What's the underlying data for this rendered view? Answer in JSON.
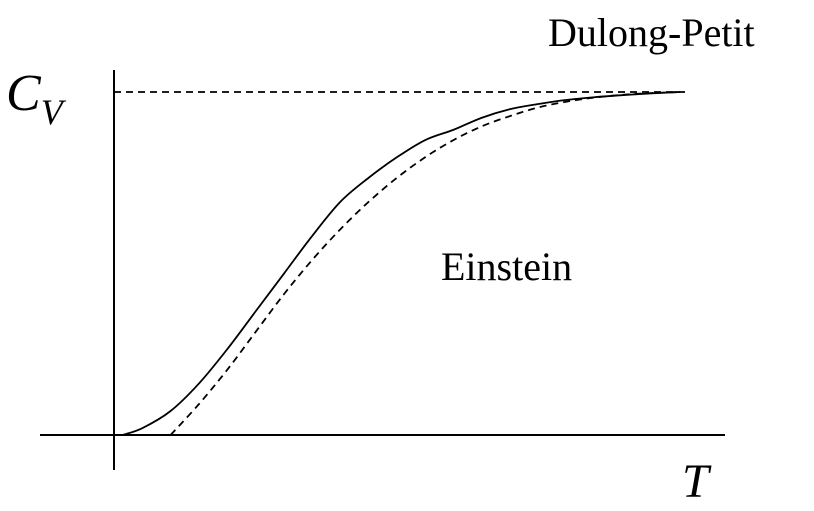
{
  "chart_data": {
    "type": "line",
    "xlabel": "T",
    "ylabel": {
      "main": "C",
      "sub": "V"
    },
    "annotations": {
      "asymptote_label": "Dulong-Petit",
      "curve_label": "Einstein"
    },
    "xlim": [
      0,
      10
    ],
    "ylim": [
      0,
      1
    ],
    "asymptote_y": 1,
    "grid": false,
    "series": [
      {
        "style": "solid",
        "x": [
          0.15,
          0.5,
          1,
          1.5,
          2,
          2.5,
          3,
          3.5,
          4,
          4.5,
          5,
          5.5,
          6,
          6.5,
          7,
          7.5,
          8,
          8.5,
          9,
          9.5,
          10
        ],
        "y": [
          0.0,
          0.02,
          0.07,
          0.15,
          0.25,
          0.36,
          0.47,
          0.58,
          0.68,
          0.75,
          0.81,
          0.86,
          0.89,
          0.925,
          0.95,
          0.965,
          0.977,
          0.985,
          0.991,
          0.996,
          1.0
        ]
      },
      {
        "style": "dashed",
        "x": [
          1,
          1.5,
          2,
          2.5,
          3,
          3.5,
          4,
          4.5,
          5,
          5.5,
          6,
          6.5,
          7,
          7.5,
          8,
          8.5,
          9,
          9.5,
          10
        ],
        "y": [
          0.0,
          0.09,
          0.19,
          0.3,
          0.41,
          0.51,
          0.6,
          0.68,
          0.75,
          0.81,
          0.86,
          0.9,
          0.93,
          0.955,
          0.972,
          0.984,
          0.992,
          0.997,
          1.0
        ]
      }
    ]
  }
}
